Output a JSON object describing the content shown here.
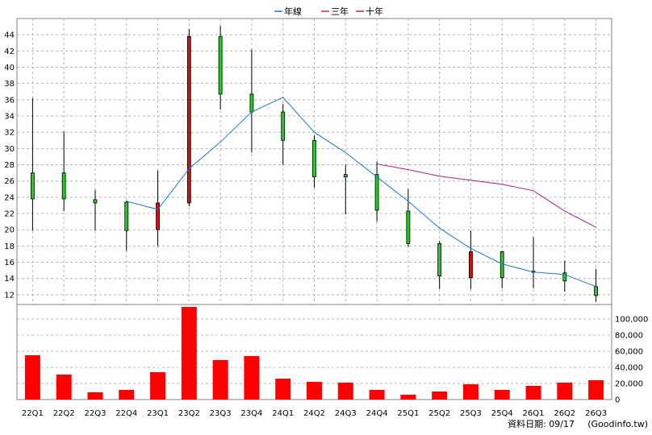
{
  "chart_data": {
    "type": "candlestick",
    "legend": [
      {
        "name": "年線",
        "color": "#1f78d1"
      },
      {
        "name": "三年",
        "color": "#e0302a"
      },
      {
        "name": "十年",
        "color": "#b0206a"
      }
    ],
    "categories": [
      "22Q1",
      "22Q2",
      "22Q3",
      "22Q4",
      "23Q1",
      "23Q2",
      "23Q3",
      "23Q4",
      "24Q1",
      "24Q2",
      "24Q3",
      "24Q4",
      "25Q1",
      "25Q2",
      "25Q3",
      "25Q4",
      "26Q1",
      "26Q2",
      "26Q3"
    ],
    "price": {
      "ylim": [
        10.8,
        46
      ],
      "yticks": [
        12,
        14,
        16,
        18,
        20,
        22,
        24,
        26,
        28,
        30,
        32,
        34,
        36,
        38,
        40,
        42,
        44
      ],
      "candles": [
        {
          "open": 23.8,
          "high": 36.2,
          "low": 19.9,
          "close": 27.0
        },
        {
          "open": 23.8,
          "high": 32.1,
          "low": 22.3,
          "close": 27.0
        },
        {
          "open": 23.3,
          "high": 24.9,
          "low": 19.9,
          "close": 23.7
        },
        {
          "open": 19.9,
          "high": 23.6,
          "low": 17.4,
          "close": 23.4
        },
        {
          "open": 23.3,
          "high": 27.3,
          "low": 18.0,
          "close": 20.0
        },
        {
          "open": 43.8,
          "high": 44.7,
          "low": 22.9,
          "close": 23.3
        },
        {
          "open": 36.7,
          "high": 45.1,
          "low": 34.8,
          "close": 43.8
        },
        {
          "open": 34.5,
          "high": 42.2,
          "low": 29.5,
          "close": 36.7
        },
        {
          "open": 31.0,
          "high": 35.5,
          "low": 28.0,
          "close": 34.5
        },
        {
          "open": 26.5,
          "high": 31.6,
          "low": 25.2,
          "close": 31.0
        },
        {
          "open": 26.5,
          "high": 28.0,
          "low": 21.9,
          "close": 26.8
        },
        {
          "open": 22.4,
          "high": 28.4,
          "low": 21.0,
          "close": 26.8
        },
        {
          "open": 18.3,
          "high": 25.0,
          "low": 17.9,
          "close": 22.3
        },
        {
          "open": 14.3,
          "high": 18.6,
          "low": 12.7,
          "close": 18.3
        },
        {
          "open": 17.3,
          "high": 19.9,
          "low": 12.7,
          "close": 14.1
        },
        {
          "open": 14.1,
          "high": 17.4,
          "low": 12.8,
          "close": 17.3
        },
        {
          "open": 14.9,
          "high": 19.1,
          "low": 12.8,
          "close": 14.9
        },
        {
          "open": 13.7,
          "high": 16.2,
          "low": 12.4,
          "close": 14.7
        },
        {
          "open": 11.9,
          "high": 15.2,
          "low": 11.1,
          "close": 13.0
        }
      ]
    },
    "ma_year": [
      null,
      null,
      null,
      23.5,
      22.5,
      27.5,
      30.8,
      34.5,
      36.3,
      32.0,
      29.5,
      26.5,
      23.5,
      20.2,
      17.7,
      15.8,
      14.8,
      14.5,
      13.0
    ],
    "ma_three": [
      null,
      null,
      null,
      null,
      null,
      null,
      null,
      null,
      null,
      null,
      null,
      28.1,
      27.4,
      26.6,
      26.1,
      25.6,
      24.8,
      22.3,
      20.3
    ],
    "volume": {
      "ylim": [
        0,
        118000
      ],
      "yticks": [
        0,
        20000,
        40000,
        60000,
        80000,
        100000
      ],
      "ytick_labels": [
        "0",
        "20,000",
        "40,000",
        "60,000",
        "80,000",
        "100,000"
      ],
      "values": [
        55000,
        31000,
        9000,
        12000,
        34000,
        115000,
        49000,
        54000,
        26000,
        22000,
        21000,
        12000,
        6000,
        10000,
        19000,
        12000,
        17000,
        21000,
        24000
      ]
    },
    "grid": true,
    "legend_position": "top-center"
  },
  "footer": {
    "date_label": "資料日期: 09/17",
    "source_label": "(Goodinfo.tw)"
  }
}
